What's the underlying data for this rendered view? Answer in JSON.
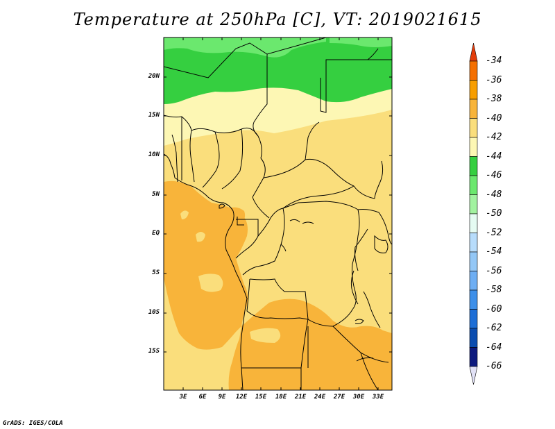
{
  "title": "Temperature at 250hPa [C], VT: 2019021615",
  "credit": "GrADS: IGES/COLA",
  "map": {
    "lat_labels": [
      "20N",
      "15N",
      "10N",
      "5N",
      "EQ",
      "5S",
      "10S",
      "15S"
    ],
    "lon_labels": [
      "3E",
      "6E",
      "9E",
      "12E",
      "15E",
      "18E",
      "21E",
      "24E",
      "27E",
      "30E",
      "33E"
    ]
  },
  "colorbar": {
    "labels": [
      "-34",
      "-36",
      "-38",
      "-40",
      "-42",
      "-44",
      "-46",
      "-48",
      "-50",
      "-52",
      "-54",
      "-56",
      "-58",
      "-60",
      "-62",
      "-64",
      "-66"
    ],
    "colors": [
      "#e33d0b",
      "#f46f00",
      "#f79e00",
      "#f8b43a",
      "#fade7c",
      "#fdf7b4",
      "#35cf40",
      "#6be86e",
      "#a2f2a0",
      "#e5fbf2",
      "#b7dcfb",
      "#93c7f6",
      "#6eaef3",
      "#3d8fe9",
      "#1d6ed6",
      "#0b4db0",
      "#0d1a7e",
      "#e1e1f6"
    ]
  }
}
